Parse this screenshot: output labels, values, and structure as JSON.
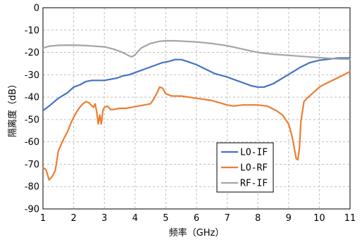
{
  "chart_data": {
    "type": "line",
    "title": "",
    "xlabel": "频率（GHz）",
    "ylabel": "隔离度（dB）",
    "xlim": [
      1,
      11
    ],
    "ylim": [
      -90,
      0
    ],
    "xticks": [
      1,
      2,
      3,
      4,
      5,
      6,
      7,
      8,
      9,
      10,
      11
    ],
    "yticks": [
      0,
      -10,
      -20,
      -30,
      -40,
      -50,
      -60,
      -70,
      -80,
      -90
    ],
    "xtick_labels": [
      "1",
      "2",
      "3",
      "4",
      "5",
      "6",
      "7",
      "8",
      "9",
      "10",
      "11"
    ],
    "ytick_labels": [
      "0",
      "-10",
      "-20",
      "-30",
      "-40",
      "-50",
      "-60",
      "-70",
      "-80",
      "-90"
    ],
    "grid": true,
    "legend_position": "bottom-right",
    "series": [
      {
        "name": "LO-IF",
        "color": "#4472C4",
        "x": [
          1,
          1.2,
          1.5,
          1.8,
          2.0,
          2.2,
          2.4,
          2.6,
          2.8,
          3.0,
          3.2,
          3.4,
          3.6,
          3.8,
          4.0,
          4.3,
          4.6,
          4.9,
          5.1,
          5.3,
          5.5,
          5.7,
          6.0,
          6.3,
          6.6,
          7.0,
          7.3,
          7.6,
          7.8,
          8.0,
          8.2,
          8.5,
          8.8,
          9.1,
          9.4,
          9.7,
          10.0,
          10.3,
          10.6,
          11.0
        ],
        "y": [
          -46,
          -44,
          -40.5,
          -38,
          -35.5,
          -34.5,
          -33,
          -32.5,
          -32.5,
          -32.5,
          -32,
          -31.5,
          -30.5,
          -30,
          -29,
          -27.5,
          -26,
          -24.5,
          -24,
          -23.2,
          -23.2,
          -24,
          -25.5,
          -27.5,
          -29.5,
          -31,
          -32.5,
          -34,
          -35,
          -35.5,
          -35.5,
          -34,
          -31.5,
          -29,
          -26.5,
          -24.5,
          -23.5,
          -23,
          -22.5,
          -22.5
        ]
      },
      {
        "name": "LO-RF",
        "color": "#ED7D31",
        "x": [
          1,
          1.1,
          1.2,
          1.3,
          1.4,
          1.5,
          1.6,
          1.7,
          1.8,
          1.9,
          2.0,
          2.1,
          2.2,
          2.3,
          2.4,
          2.5,
          2.6,
          2.65,
          2.7,
          2.75,
          2.8,
          2.85,
          2.9,
          2.95,
          3.0,
          3.1,
          3.2,
          3.3,
          3.5,
          3.7,
          3.9,
          4.1,
          4.3,
          4.5,
          4.6,
          4.7,
          4.8,
          4.9,
          5.0,
          5.2,
          5.5,
          6.0,
          6.5,
          7.0,
          7.2,
          7.5,
          8.0,
          8.3,
          8.6,
          8.8,
          9.0,
          9.1,
          9.15,
          9.2,
          9.25,
          9.3,
          9.35,
          9.4,
          9.5,
          9.6,
          9.8,
          10.0,
          10.2,
          10.5,
          10.8,
          11.0
        ],
        "y": [
          -71.5,
          -72.5,
          -77,
          -75.5,
          -73,
          -64,
          -61,
          -58,
          -55.5,
          -52,
          -49,
          -46.5,
          -44.5,
          -43,
          -42,
          -42.5,
          -44,
          -44.5,
          -43,
          -46.5,
          -52,
          -48,
          -52,
          -46,
          -44.5,
          -44,
          -45.5,
          -45.5,
          -45,
          -45,
          -44.5,
          -44,
          -43.5,
          -43,
          -41,
          -38.5,
          -35.5,
          -36,
          -38.5,
          -39.5,
          -39.5,
          -40.5,
          -41.5,
          -43.5,
          -44,
          -43.5,
          -43.5,
          -44,
          -46,
          -48,
          -52,
          -57,
          -60,
          -64,
          -67.5,
          -68,
          -63,
          -51,
          -42,
          -40.5,
          -38,
          -35.5,
          -34,
          -32,
          -30,
          -28.5
        ]
      },
      {
        "name": "RF-IF",
        "color": "#A5A5A5",
        "x": [
          1,
          1.2,
          1.5,
          2.0,
          2.5,
          3.0,
          3.3,
          3.6,
          3.8,
          3.9,
          4.0,
          4.2,
          4.5,
          4.8,
          5.0,
          5.3,
          5.6,
          6.0,
          6.5,
          7.0,
          7.5,
          8.0,
          8.5,
          9.0,
          9.5,
          10.0,
          10.5,
          11.0
        ],
        "y": [
          -18,
          -17.2,
          -16.8,
          -16.7,
          -17,
          -17.5,
          -18.5,
          -20,
          -21.5,
          -22,
          -21,
          -18,
          -16,
          -15,
          -14.8,
          -14.8,
          -15,
          -15.3,
          -16,
          -17,
          -18.5,
          -20,
          -20.8,
          -21.3,
          -21.8,
          -22.3,
          -22.8,
          -23
        ]
      }
    ]
  }
}
